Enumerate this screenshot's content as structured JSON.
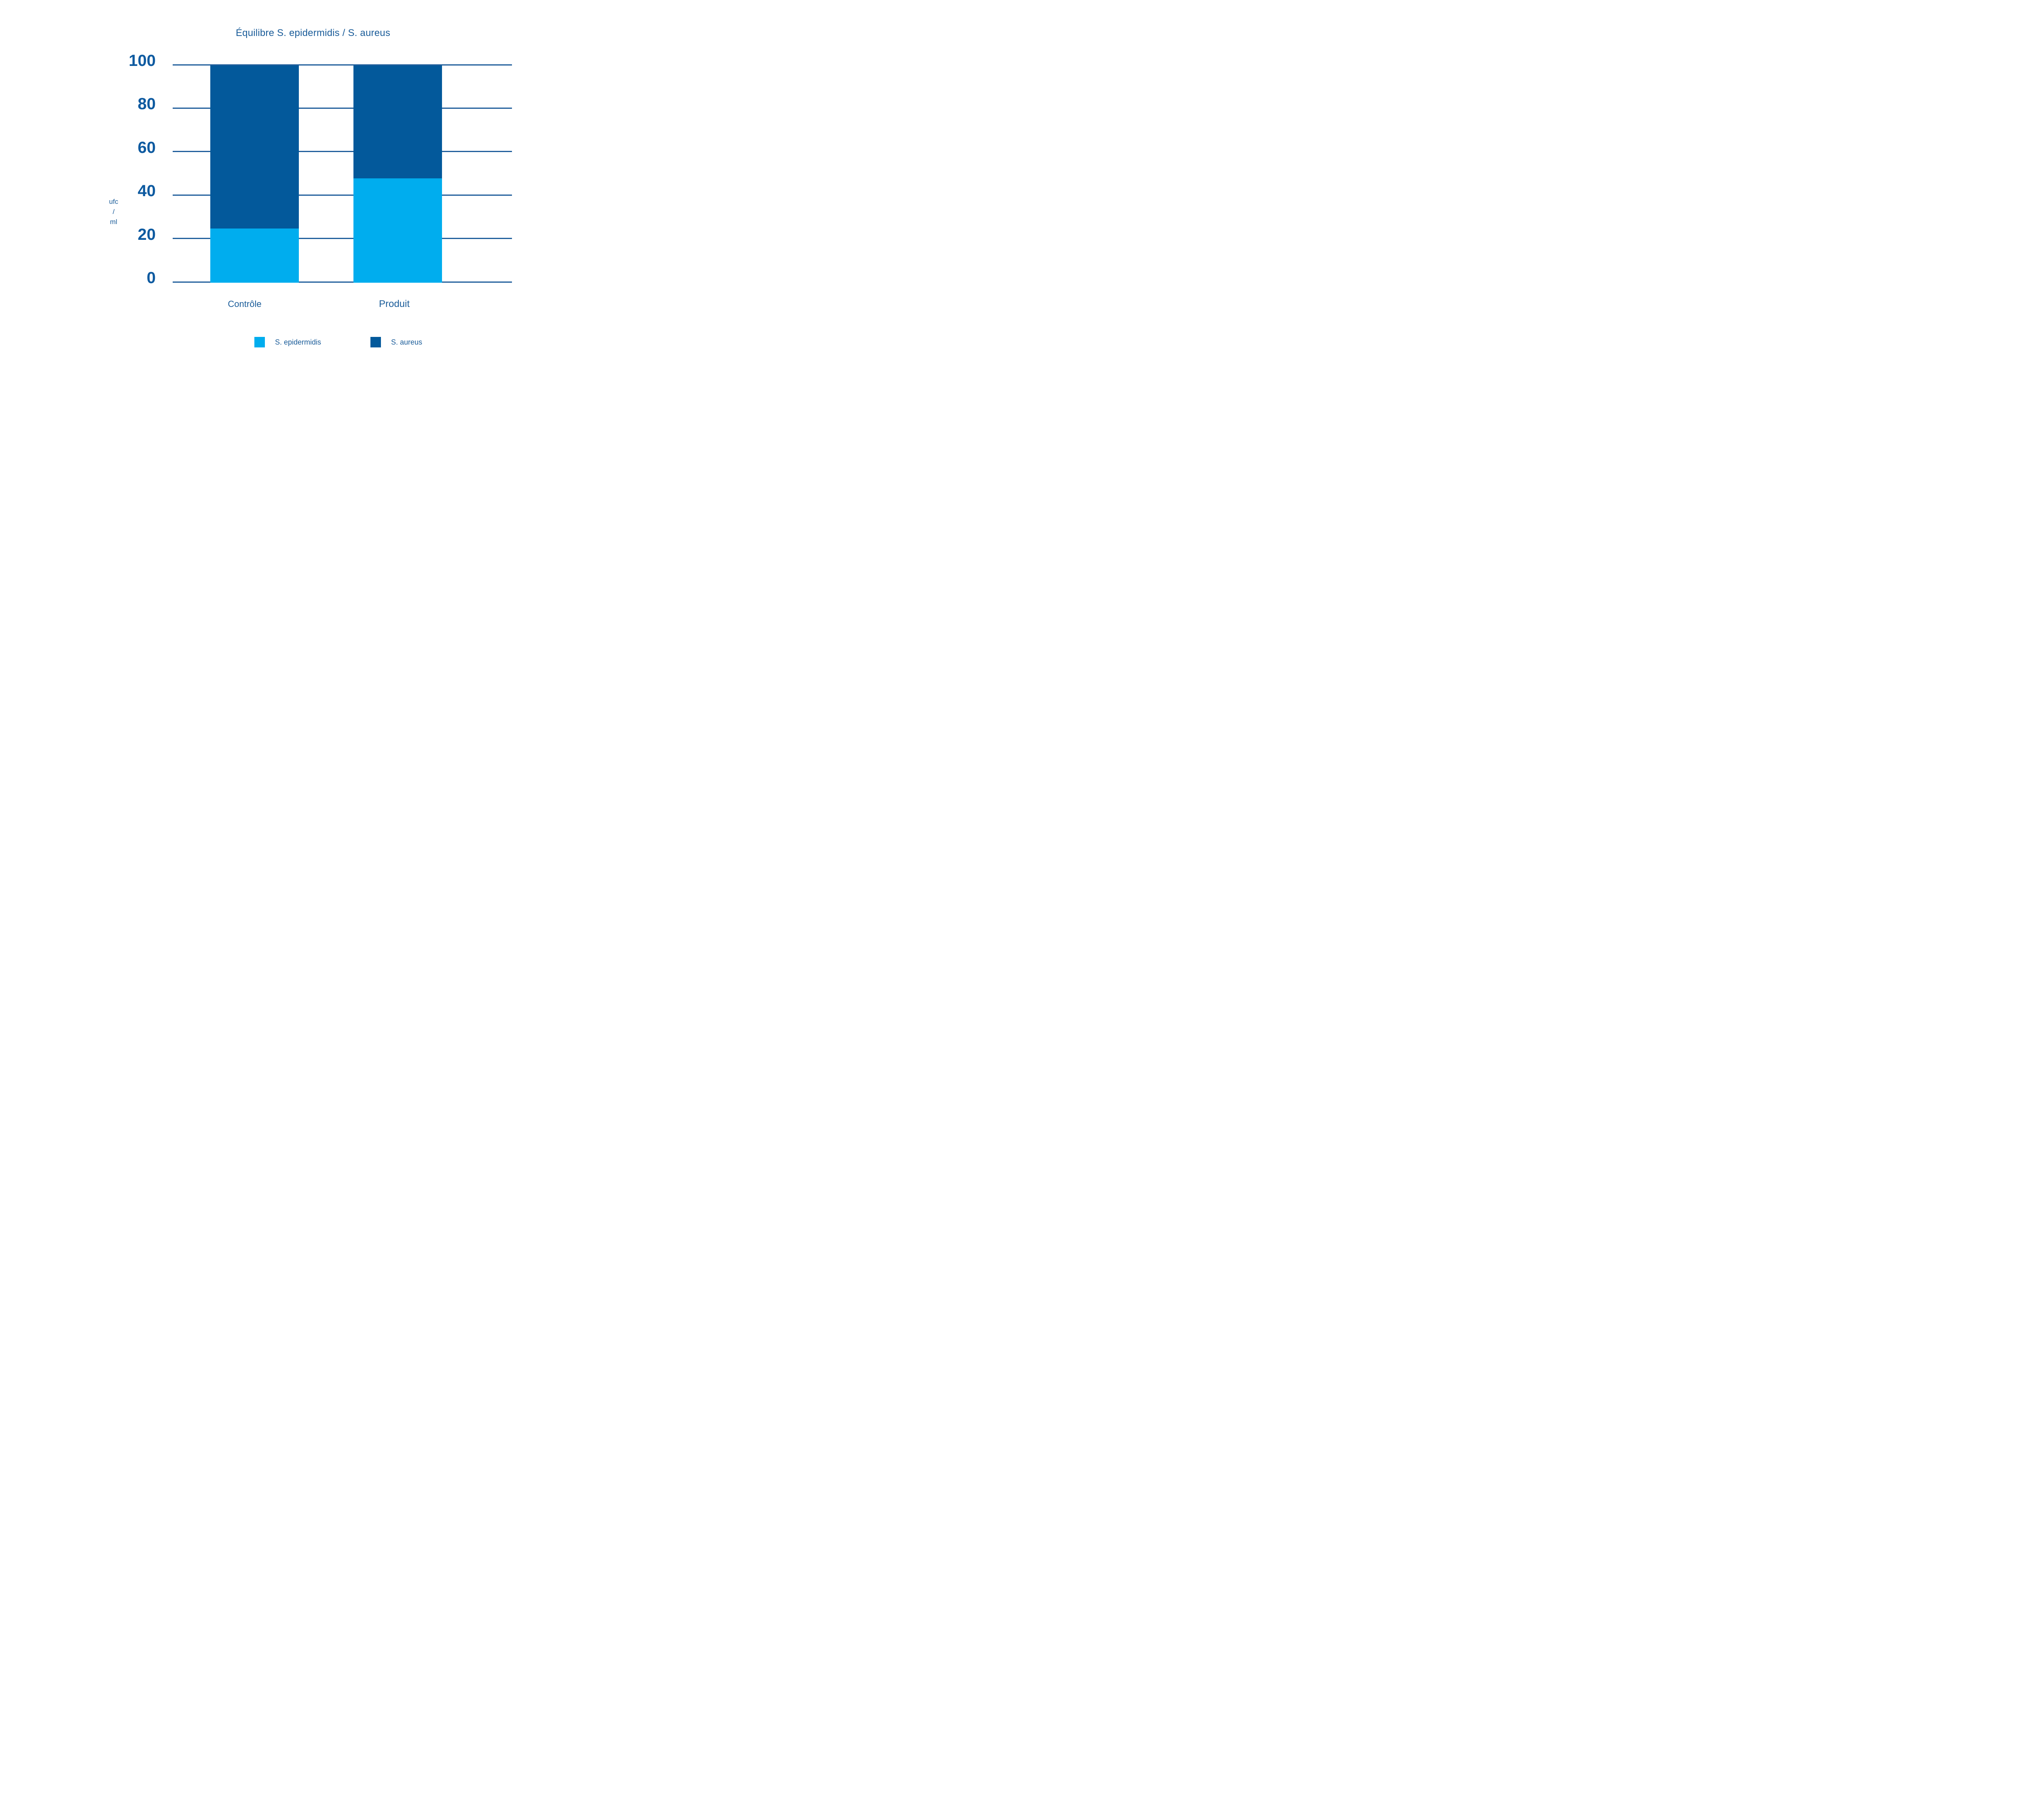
{
  "page": {
    "background": "#FFFFFF"
  },
  "chart_data": {
    "type": "bar",
    "stacked": true,
    "title": "Équilibre S. epidermidis / S. aureus",
    "y_unit_lines": [
      "ufc",
      "/",
      "ml"
    ],
    "categories": [
      "Contrôle",
      "Produit"
    ],
    "series": [
      {
        "name": "S. epidermidis",
        "values": [
          25,
          48
        ],
        "color": "#00ADEE"
      },
      {
        "name": "S. aureus",
        "values": [
          75,
          52
        ],
        "color": "#03599B"
      }
    ],
    "yticks": [
      0,
      20,
      40,
      60,
      80,
      100
    ],
    "ylim": [
      0,
      100
    ],
    "grid": true,
    "legend_position": "bottom"
  },
  "colors": {
    "title_text": "#1A5C99",
    "tick_text": "#0D5AA0",
    "label_text": "#1A5C99",
    "gridline": "#215F9C",
    "s_epidermidis": "#00ADEE",
    "s_aureus": "#03599B"
  }
}
